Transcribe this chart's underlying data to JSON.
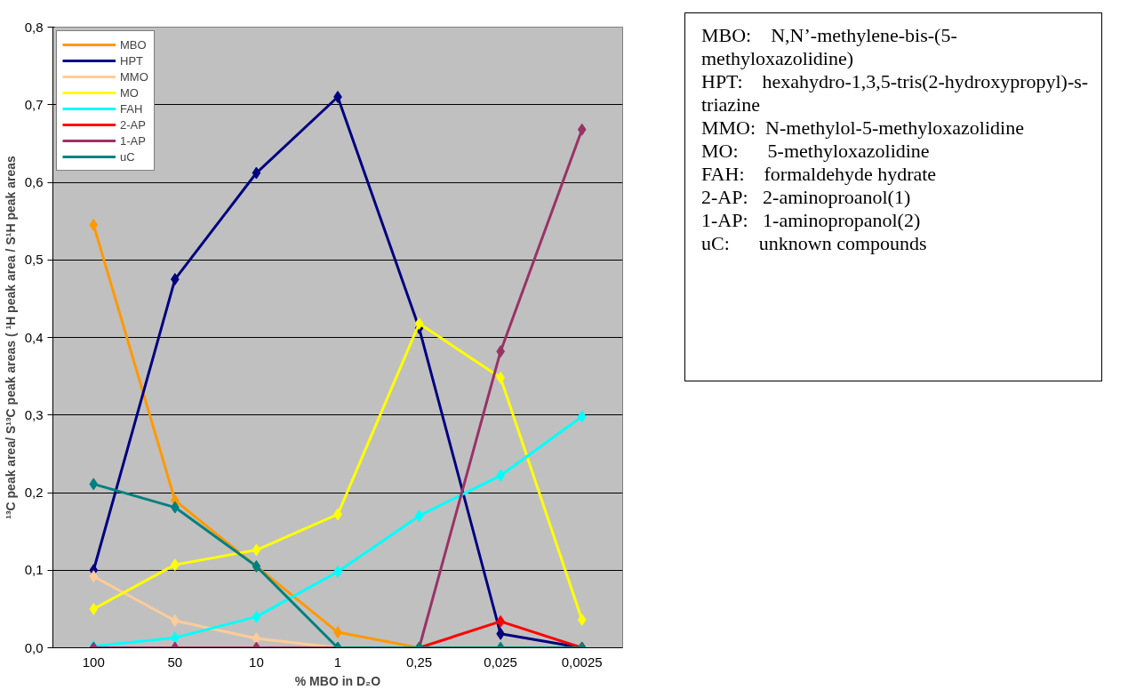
{
  "chart_data": {
    "type": "line",
    "xlabel": "% MBO in D₂O",
    "ylabel": "¹³C peak area/ S¹³C peak areas ( ¹H peak area / S¹H peak areas",
    "categories": [
      "100",
      "50",
      "10",
      "1",
      "0,25",
      "0,025",
      "0,0025"
    ],
    "ylim": [
      0,
      0.8
    ],
    "yticks": [
      {
        "value": 0,
        "label": "0,0"
      },
      {
        "value": 0.1,
        "label": "0,1"
      },
      {
        "value": 0.2,
        "label": "0,2"
      },
      {
        "value": 0.3,
        "label": "0,3"
      },
      {
        "value": 0.4,
        "label": "0,4"
      },
      {
        "value": 0.5,
        "label": "0,5"
      },
      {
        "value": 0.6,
        "label": "0,6"
      },
      {
        "value": 0.7,
        "label": "0,7"
      },
      {
        "value": 0.8,
        "label": "0,8"
      }
    ],
    "grid": "y",
    "legend": "top left",
    "marker": "diamond",
    "line_style": "solid",
    "series": [
      {
        "name": "MBO",
        "color": "#ff9900",
        "values": [
          0.545,
          0.19,
          0.105,
          0.02,
          0,
          0,
          0
        ]
      },
      {
        "name": "HPT",
        "color": "#000080",
        "values": [
          0.1,
          0.475,
          0.612,
          0.71,
          0.412,
          0.018,
          0
        ]
      },
      {
        "name": "MMO",
        "color": "#ffcc99",
        "values": [
          0.092,
          0.035,
          0.012,
          0,
          0,
          0,
          0
        ]
      },
      {
        "name": "MO",
        "color": "#ffff00",
        "values": [
          0.05,
          0.107,
          0.126,
          0.172,
          0.418,
          0.348,
          0.036
        ]
      },
      {
        "name": "FAH",
        "color": "#00ffff",
        "values": [
          0.002,
          0.013,
          0.04,
          0.098,
          0.17,
          0.222,
          0.298
        ]
      },
      {
        "name": "2-AP",
        "color": "#ff0000",
        "values": [
          null,
          null,
          null,
          null,
          0,
          0.034,
          0
        ]
      },
      {
        "name": "1-AP",
        "color": "#993366",
        "values": [
          0,
          0,
          0,
          0,
          0,
          0.382,
          0.668
        ]
      },
      {
        "name": "uC",
        "color": "#008080",
        "values": [
          0.211,
          0.181,
          0.105,
          0,
          0,
          0,
          0
        ]
      }
    ],
    "annotations": [
      "MBO:    N,N’-methylene-bis-(5-methyloxazolidine)",
      "HPT:    hexahydro-1,3,5-tris(2-hydroxypropyl)-s-triazine",
      "MMO:  N-methylol-5-methyloxazolidine",
      "MO:      5-methyloxazolidine",
      "FAH:    formaldehyde hydrate",
      "2-AP:   2-aminoproanol(1)",
      "1-AP:   1-aminopropanol(2)",
      "uC:      unknown compounds"
    ]
  }
}
